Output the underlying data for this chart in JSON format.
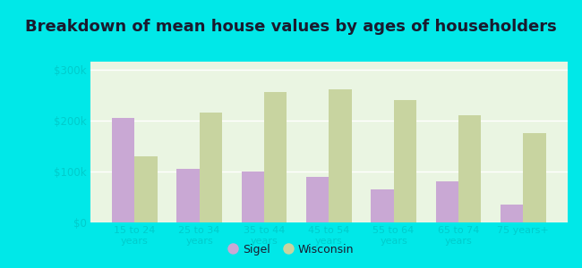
{
  "categories": [
    "15 to 24\nyears",
    "25 to 34\nyears",
    "35 to 44\nyears",
    "45 to 54\nyears",
    "55 to 64\nyears",
    "65 to 74\nyears",
    "75 years+"
  ],
  "sigel_values": [
    205000,
    105000,
    100000,
    90000,
    65000,
    80000,
    35000
  ],
  "wisconsin_values": [
    130000,
    215000,
    255000,
    260000,
    240000,
    210000,
    175000
  ],
  "sigel_color": "#c9a8d4",
  "wisconsin_color": "#c8d4a0",
  "title": "Breakdown of mean house values by ages of householders",
  "title_fontsize": 13,
  "ylabel_ticks": [
    0,
    100000,
    200000,
    300000
  ],
  "ylabel_labels": [
    "$0",
    "$100k",
    "$200k",
    "$300k"
  ],
  "ylim": [
    0,
    315000
  ],
  "background_color": "#eaf5e2",
  "outer_background": "#00e8e8",
  "legend_labels": [
    "Sigel",
    "Wisconsin"
  ],
  "bar_width": 0.35,
  "grid_color": "#ffffff",
  "tick_color": "#00cccc",
  "title_color": "#1a1a2e"
}
